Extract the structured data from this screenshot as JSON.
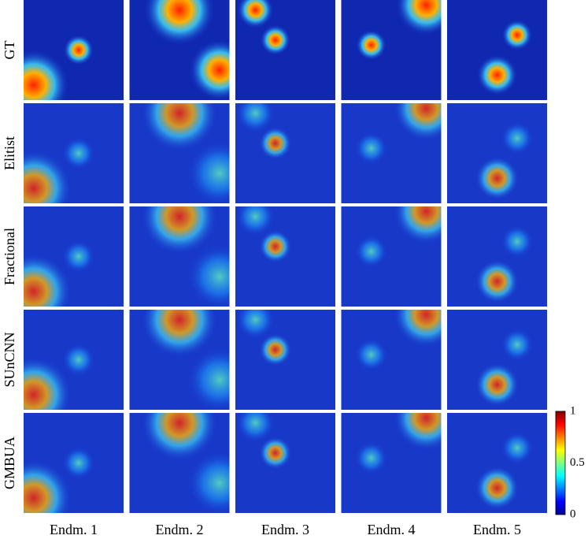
{
  "rows": [
    "GT",
    "Elitist",
    "Fractional",
    "SUnCNN",
    "GMBUA"
  ],
  "columns": [
    "Endm. 1",
    "Endm. 2",
    "Endm. 3",
    "Endm. 4",
    "Endm. 5"
  ],
  "colorbar": {
    "ticks": [
      0,
      0.5,
      1
    ],
    "lim": [
      0,
      1
    ]
  }
}
